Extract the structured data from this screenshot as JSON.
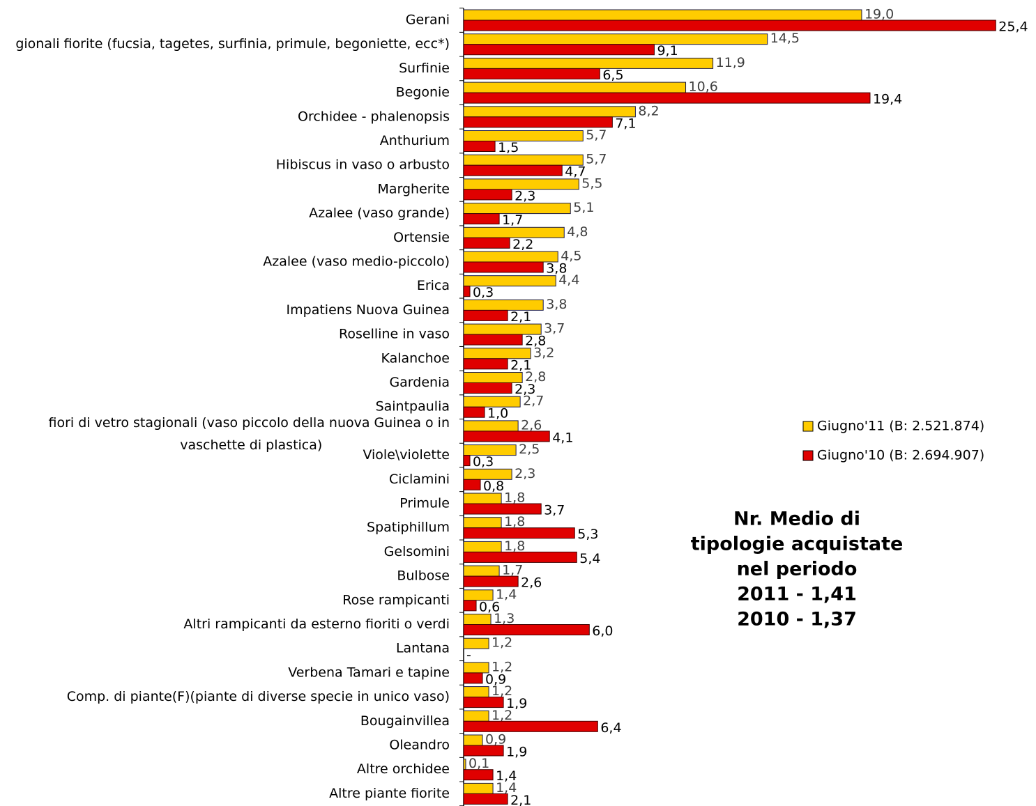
{
  "chart_data": {
    "type": "hbar",
    "categories": [
      "Gerani",
      "gionali fiorite (fucsia, tagetes, surfinia, primule, begoniette, ecc*)",
      "Surfinie",
      "Begonie",
      "Orchidee - phalenopsis",
      "Anthurium",
      "Hibiscus in vaso o arbusto",
      "Margherite",
      "Azalee (vaso grande)",
      "Ortensie",
      "Azalee (vaso medio-piccolo)",
      "Erica",
      "Impatiens Nuova Guinea",
      "Roselline in vaso",
      "Kalanchoe",
      "Gardenia",
      "Saintpaulia",
      "fiori di vetro stagionali (vaso piccolo della nuova Guinea o in vaschette di plastica)",
      "Viole\\violette",
      "Ciclamini",
      "Primule",
      "Spatiphillum",
      "Gelsomini",
      "Bulbose",
      "Rose rampicanti",
      "Altri rampicanti da esterno fioriti o verdi",
      "Lantana",
      "Verbena Tamari e tapine",
      "Comp. di piante(F)(piante di diverse specie in unico vaso)",
      "Bougainvillea",
      "Oleandro",
      "Altre orchidee",
      "Altre piante fiorite"
    ],
    "series": [
      {
        "name": "Giugno'11 (B: 2.521.874)",
        "color": "#ffcc00",
        "values": [
          19.0,
          14.5,
          11.9,
          10.6,
          8.2,
          5.7,
          5.7,
          5.5,
          5.1,
          4.8,
          4.5,
          4.4,
          3.8,
          3.7,
          3.2,
          2.8,
          2.7,
          2.6,
          2.5,
          2.3,
          1.8,
          1.8,
          1.8,
          1.7,
          1.4,
          1.3,
          1.2,
          1.2,
          1.2,
          1.2,
          0.9,
          0.1,
          1.4
        ],
        "value_labels": [
          "19,0",
          "14,5",
          "11,9",
          "10,6",
          "8,2",
          "5,7",
          "5,7",
          "5,5",
          "5,1",
          "4,8",
          "4,5",
          "4,4",
          "3,8",
          "3,7",
          "3,2",
          "2,8",
          "2,7",
          "2,6",
          "2,5",
          "2,3",
          "1,8",
          "1,8",
          "1,8",
          "1,7",
          "1,4",
          "1,3",
          "1,2",
          "1,2",
          "1,2",
          "1,2",
          "0,9",
          "0,1",
          "1,4"
        ]
      },
      {
        "name": "Giugno'10 (B: 2.694.907)",
        "color": "#e00000",
        "values": [
          25.4,
          9.1,
          6.5,
          19.4,
          7.1,
          1.5,
          4.7,
          2.3,
          1.7,
          2.2,
          3.8,
          0.3,
          2.1,
          2.8,
          2.1,
          2.3,
          1.0,
          4.1,
          0.3,
          0.8,
          3.7,
          5.3,
          5.4,
          2.6,
          0.6,
          6.0,
          0,
          0.9,
          1.9,
          6.4,
          1.9,
          1.4,
          2.1
        ],
        "value_labels": [
          "25,4",
          "9,1",
          "6,5",
          "19,4",
          "7,1",
          "1,5",
          "4,7",
          "2,3",
          "1,7",
          "2,2",
          "3,8",
          "0,3",
          "2,1",
          "2,8",
          "2,1",
          "2,3",
          "1,0",
          "4,1",
          "0,3",
          "0,8",
          "3,7",
          "5,3",
          "5,4",
          "2,6",
          "0,6",
          "6,0",
          "-",
          "0,9",
          "1,9",
          "6,4",
          "1,9",
          "1,4",
          "2,1"
        ]
      }
    ],
    "annotation": [
      "Nr. Medio di",
      "tipologie acquistate",
      "nel periodo",
      "2011 - 1,41",
      "2010 - 1,37"
    ],
    "legend": "right"
  }
}
